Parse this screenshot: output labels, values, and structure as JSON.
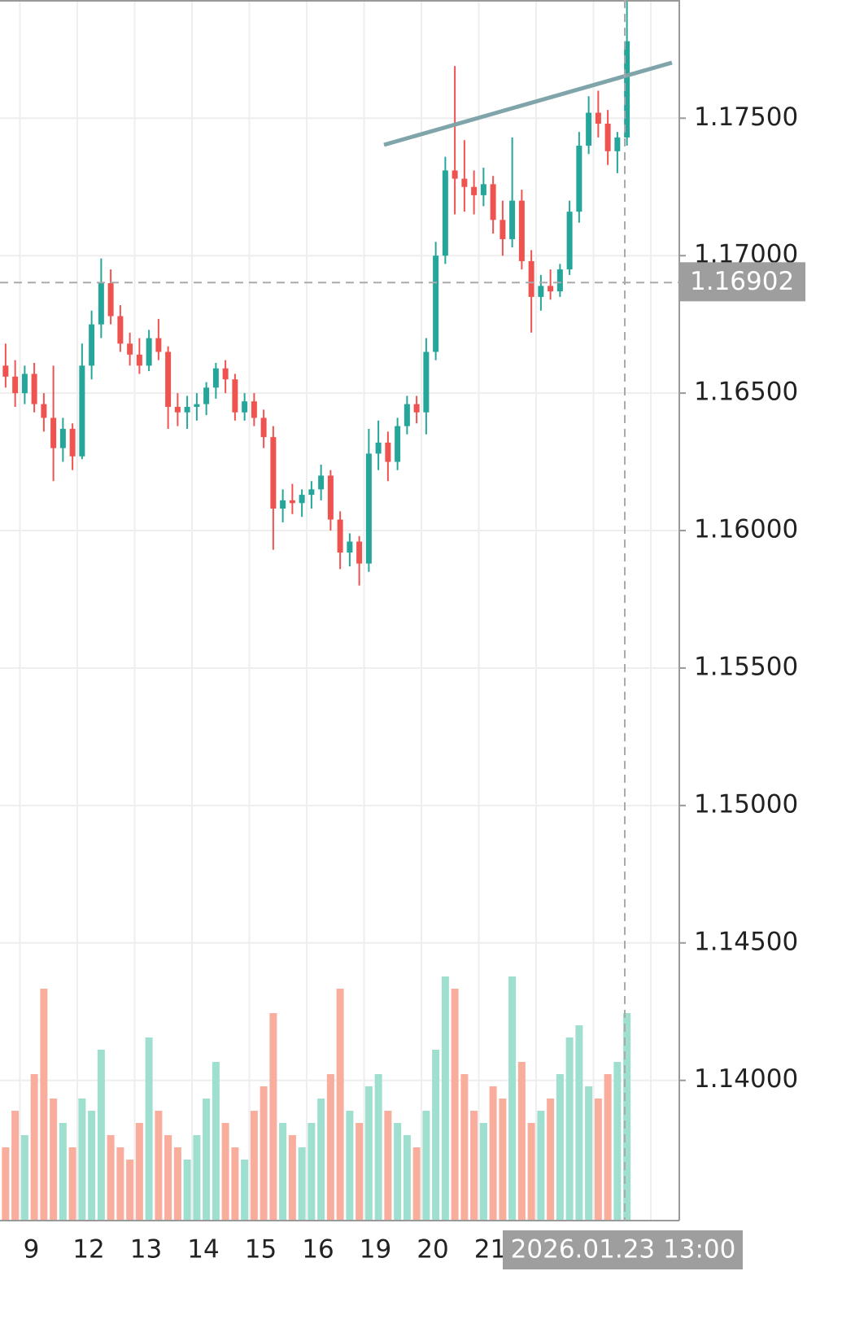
{
  "chart_data": {
    "type": "candlestick",
    "categories": [
      null,
      null,
      "9",
      null,
      null,
      null,
      null,
      null,
      "12",
      null,
      null,
      null,
      null,
      null,
      "13",
      null,
      null,
      null,
      null,
      null,
      "14",
      null,
      null,
      null,
      null,
      null,
      "15",
      null,
      null,
      null,
      null,
      null,
      "16",
      null,
      null,
      null,
      null,
      null,
      "19",
      null,
      null,
      null,
      null,
      null,
      "20",
      null,
      null,
      null,
      null,
      null,
      "21",
      null,
      null,
      null,
      null,
      null,
      null,
      null,
      null,
      null,
      null,
      null,
      null,
      null,
      null,
      null
    ],
    "open": [
      1.166,
      1.1656,
      1.165,
      1.1657,
      1.1646,
      1.1641,
      1.163,
      1.1637,
      1.1627,
      1.166,
      1.1675,
      1.169,
      1.1678,
      1.1668,
      1.1664,
      1.166,
      1.167,
      1.1665,
      1.1645,
      1.1643,
      1.1645,
      1.1646,
      1.1652,
      1.1659,
      1.1655,
      1.1643,
      1.1647,
      1.1641,
      1.1634,
      1.1608,
      1.1611,
      1.161,
      1.1613,
      1.1615,
      1.162,
      1.1604,
      1.1592,
      1.1596,
      1.1588,
      1.1628,
      1.1632,
      1.1625,
      1.1638,
      1.1646,
      1.1643,
      1.1665,
      1.17,
      1.1731,
      1.1728,
      1.1725,
      1.1722,
      1.1726,
      1.1713,
      1.1706,
      1.172,
      1.1698,
      1.1685,
      1.1689,
      1.1687,
      1.1695,
      1.1716,
      1.174,
      1.1752,
      1.1748,
      1.1738,
      1.1743
    ],
    "high": [
      1.1668,
      1.1662,
      1.166,
      1.1661,
      1.165,
      1.166,
      1.1641,
      1.1639,
      1.1668,
      1.168,
      1.1699,
      1.1695,
      1.1682,
      1.1672,
      1.167,
      1.1673,
      1.1677,
      1.1667,
      1.165,
      1.1649,
      1.165,
      1.1654,
      1.1661,
      1.1662,
      1.1657,
      1.165,
      1.165,
      1.1644,
      1.1638,
      1.1615,
      1.1617,
      1.1615,
      1.1618,
      1.1624,
      1.1622,
      1.1607,
      1.1599,
      1.1598,
      1.1637,
      1.164,
      1.1636,
      1.1641,
      1.1649,
      1.1649,
      1.167,
      1.1705,
      1.1736,
      1.1769,
      1.1742,
      1.1731,
      1.1732,
      1.1729,
      1.172,
      1.1743,
      1.1724,
      1.1702,
      1.1693,
      1.1695,
      1.1697,
      1.172,
      1.1745,
      1.1758,
      1.176,
      1.1753,
      1.1745,
      1.1793
    ],
    "low": [
      1.1652,
      1.1645,
      1.1646,
      1.1643,
      1.1636,
      1.1618,
      1.1625,
      1.1622,
      1.1626,
      1.1655,
      1.167,
      1.1675,
      1.1665,
      1.166,
      1.1657,
      1.1658,
      1.1662,
      1.1637,
      1.1638,
      1.1637,
      1.164,
      1.1642,
      1.1648,
      1.165,
      1.164,
      1.164,
      1.1638,
      1.163,
      1.1593,
      1.1603,
      1.1606,
      1.1605,
      1.1608,
      1.1611,
      1.16,
      1.1586,
      1.1587,
      1.158,
      1.1585,
      1.1622,
      1.1618,
      1.1622,
      1.1635,
      1.1639,
      1.1635,
      1.1662,
      1.1697,
      1.1715,
      1.1716,
      1.1715,
      1.1718,
      1.1708,
      1.17,
      1.1703,
      1.1695,
      1.1672,
      1.168,
      1.1684,
      1.1685,
      1.1693,
      1.1712,
      1.1737,
      1.1743,
      1.1733,
      1.173,
      1.174
    ],
    "close": [
      1.1656,
      1.165,
      1.1657,
      1.1646,
      1.1641,
      1.163,
      1.1637,
      1.1627,
      1.166,
      1.1675,
      1.169,
      1.1678,
      1.1668,
      1.1664,
      1.166,
      1.167,
      1.1665,
      1.1645,
      1.1643,
      1.1645,
      1.1646,
      1.1652,
      1.1659,
      1.1655,
      1.1643,
      1.1647,
      1.1641,
      1.1634,
      1.1608,
      1.1611,
      1.161,
      1.1613,
      1.1615,
      1.162,
      1.1604,
      1.1592,
      1.1596,
      1.1588,
      1.1628,
      1.1632,
      1.1625,
      1.1638,
      1.1646,
      1.1643,
      1.1665,
      1.17,
      1.1731,
      1.1728,
      1.1725,
      1.1722,
      1.1726,
      1.1713,
      1.1706,
      1.172,
      1.1698,
      1.1685,
      1.1689,
      1.1687,
      1.1695,
      1.1716,
      1.174,
      1.1752,
      1.1748,
      1.1738,
      1.1743,
      1.1778
    ],
    "volume": [
      30,
      45,
      35,
      60,
      95,
      50,
      40,
      30,
      50,
      45,
      70,
      35,
      30,
      25,
      40,
      75,
      45,
      35,
      30,
      25,
      35,
      50,
      65,
      40,
      30,
      25,
      45,
      55,
      85,
      40,
      35,
      30,
      40,
      50,
      60,
      95,
      45,
      40,
      55,
      60,
      45,
      40,
      35,
      30,
      45,
      70,
      100,
      95,
      60,
      45,
      40,
      55,
      50,
      100,
      65,
      40,
      45,
      50,
      60,
      75,
      80,
      55,
      50,
      60,
      65,
      85
    ],
    "up_color": "#26a69a",
    "down_color": "#ef5350",
    "up_volume_color": "#9fdfcf",
    "down_volume_color": "#f8ad9d",
    "ylim": [
      1.1349,
      1.1793
    ],
    "yticks": [
      {
        "value": 1.14,
        "label": "1.14000"
      },
      {
        "value": 1.145,
        "label": "1.14500"
      },
      {
        "value": 1.15,
        "label": "1.15000"
      },
      {
        "value": 1.155,
        "label": "1.15500"
      },
      {
        "value": 1.16,
        "label": "1.16000"
      },
      {
        "value": 1.165,
        "label": "1.16500"
      },
      {
        "value": 1.17,
        "label": "1.17000"
      },
      {
        "value": 1.175,
        "label": "1.17500"
      }
    ],
    "grid": true,
    "crosshair": {
      "price": 1.16902,
      "time": "2026.01.23 13:00"
    }
  }
}
